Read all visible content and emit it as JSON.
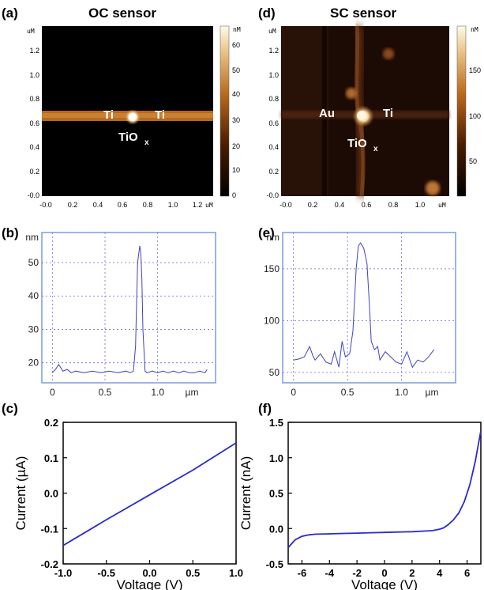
{
  "panels": {
    "a": {
      "label": "(a)",
      "title": "OC sensor",
      "unit_axis": "uM",
      "colorbar_unit": "nM",
      "y_ticks": [
        "1.2",
        "1.0",
        "0.8",
        "0.6",
        "0.4",
        "0.2",
        "-0.0"
      ],
      "x_ticks": [
        "-0.0",
        "0.2",
        "0.4",
        "0.6",
        "0.8",
        "1.0",
        "1.2"
      ],
      "colorbar_ticks": [
        "60",
        "50",
        "40",
        "30",
        "20",
        "10",
        "0"
      ],
      "annotations": [
        "Ti",
        "Ti",
        "TiO",
        "x"
      ]
    },
    "d": {
      "label": "(d)",
      "title": "SC sensor",
      "unit_axis": "uM",
      "colorbar_unit": "nM",
      "y_ticks": [
        "1.2",
        "1.0",
        "0.8",
        "0.6",
        "0.4",
        "0.2",
        "-0.0"
      ],
      "x_ticks": [
        "-0.0",
        "0.2",
        "0.4",
        "0.6",
        "0.8",
        "1.0"
      ],
      "colorbar_ticks": [
        "150",
        "100",
        "50"
      ],
      "annotations": [
        "Au",
        "Ti",
        "TiO",
        "x"
      ]
    },
    "b": {
      "label": "(b)"
    },
    "e": {
      "label": "(e)"
    },
    "c": {
      "label": "(c)"
    },
    "f": {
      "label": "(f)"
    }
  },
  "chart_data": [
    {
      "id": "b",
      "type": "line",
      "ylabel": "nm",
      "xlabel": "µm",
      "xlim": [
        -0.1,
        1.55
      ],
      "ylim": [
        14,
        59
      ],
      "x_ticks": [
        "0",
        "0.5",
        "1.0"
      ],
      "y_ticks": [
        "20",
        "30",
        "40",
        "50"
      ],
      "grid": true,
      "color": "#4040c8",
      "series": [
        {
          "x": [
            0.0,
            0.03,
            0.06,
            0.08,
            0.1,
            0.14,
            0.18,
            0.22,
            0.3,
            0.38,
            0.46,
            0.54,
            0.62,
            0.7,
            0.74,
            0.77,
            0.79,
            0.8,
            0.81,
            0.83,
            0.84,
            0.85,
            0.86,
            0.88,
            0.9,
            0.95,
            1.0,
            1.05,
            1.1,
            1.15,
            1.2,
            1.25,
            1.3,
            1.35,
            1.4,
            1.45,
            1.47
          ],
          "y": [
            17,
            18,
            19.5,
            18.5,
            17.5,
            18,
            17,
            17.5,
            17,
            17.5,
            17,
            17.5,
            17,
            17.5,
            17,
            17.5,
            25,
            38,
            50,
            55,
            53,
            45,
            30,
            17.5,
            17,
            17.5,
            17,
            17.5,
            17,
            17.5,
            17,
            17.5,
            17,
            17,
            17.5,
            17,
            18
          ]
        }
      ]
    },
    {
      "id": "e",
      "type": "line",
      "ylabel": "nm",
      "xlabel": "µm",
      "xlim": [
        -0.1,
        1.5
      ],
      "ylim": [
        40,
        185
      ],
      "x_ticks": [
        "0",
        "0.5",
        "1.0"
      ],
      "y_ticks": [
        "50",
        "100",
        "150"
      ],
      "grid": true,
      "color": "#4040c8",
      "series": [
        {
          "x": [
            0.0,
            0.05,
            0.1,
            0.15,
            0.18,
            0.2,
            0.25,
            0.3,
            0.35,
            0.38,
            0.42,
            0.45,
            0.48,
            0.52,
            0.55,
            0.58,
            0.6,
            0.62,
            0.65,
            0.68,
            0.7,
            0.72,
            0.75,
            0.78,
            0.8,
            0.85,
            0.9,
            0.95,
            1.0,
            1.05,
            1.1,
            1.15,
            1.2,
            1.25,
            1.3
          ],
          "y": [
            62,
            63,
            65,
            75,
            66,
            62,
            68,
            60,
            58,
            70,
            55,
            80,
            65,
            68,
            90,
            150,
            172,
            175,
            170,
            155,
            120,
            80,
            72,
            75,
            62,
            70,
            65,
            60,
            58,
            70,
            55,
            62,
            60,
            65,
            72
          ]
        }
      ]
    },
    {
      "id": "c",
      "type": "line",
      "ylabel": "Current (µA)",
      "xlabel": "Voltage (V)",
      "xlim": [
        -1.0,
        1.0
      ],
      "ylim": [
        -0.2,
        0.2
      ],
      "x_ticks": [
        "-1.0",
        "-0.5",
        "0.0",
        "0.5",
        "1.0"
      ],
      "y_ticks": [
        "0.2",
        "0.1",
        "0.0",
        "-0.1",
        "-0.2"
      ],
      "grid": false,
      "color": "#2a2ad0",
      "series": [
        {
          "x": [
            -1.0,
            -0.5,
            0.0,
            0.5,
            1.0
          ],
          "y": [
            -0.148,
            -0.075,
            -0.005,
            0.065,
            0.142
          ]
        }
      ]
    },
    {
      "id": "f",
      "type": "line",
      "ylabel": "Current (nA)",
      "xlabel": "Voltage (V)",
      "xlim": [
        -7,
        7
      ],
      "ylim": [
        -0.5,
        1.5
      ],
      "x_ticks": [
        "-6",
        "-4",
        "-2",
        "0",
        "2",
        "4",
        "6"
      ],
      "y_ticks": [
        "1.5",
        "1.0",
        "0.5",
        "0.0",
        "-0.5"
      ],
      "grid": false,
      "color": "#2a2ad0",
      "series": [
        {
          "x": [
            -7,
            -6.5,
            -6,
            -5.5,
            -5,
            -4,
            -3,
            -2,
            -1,
            0,
            1,
            2,
            3,
            3.5,
            4,
            4.3,
            4.6,
            5,
            5.4,
            5.8,
            6.2,
            6.6,
            7
          ],
          "y": [
            -0.27,
            -0.16,
            -0.11,
            -0.09,
            -0.08,
            -0.075,
            -0.07,
            -0.065,
            -0.06,
            -0.055,
            -0.05,
            -0.045,
            -0.035,
            -0.03,
            -0.01,
            0.01,
            0.05,
            0.12,
            0.22,
            0.38,
            0.62,
            0.95,
            1.38
          ]
        }
      ]
    }
  ]
}
